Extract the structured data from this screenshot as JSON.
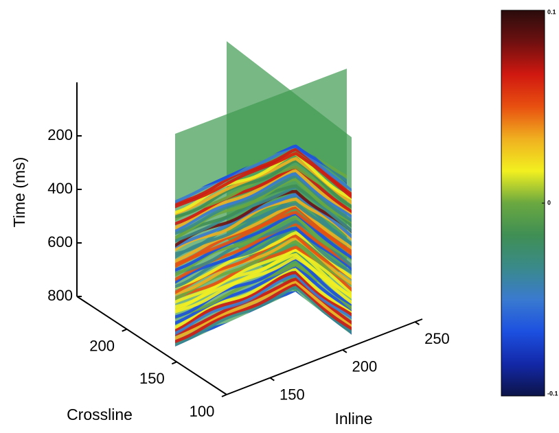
{
  "chart_data": {
    "type": "seismic-slices-3d",
    "xlabel": "Crossline",
    "ylabel": "Inline",
    "zlabel": "Time (ms)",
    "xlim": [
      100,
      250
    ],
    "xticks": [
      100,
      150,
      200
    ],
    "ylim": [
      120,
      255
    ],
    "yticks": [
      150,
      200,
      250
    ],
    "zlim": [
      0,
      800
    ],
    "zticks": [
      200,
      400,
      600,
      800
    ],
    "z_reversed": true,
    "clim": [
      -0.1,
      0.1
    ],
    "cticks": [
      -0.1,
      0,
      0.1
    ],
    "colormap": [
      "#0c1448",
      "#1328a8",
      "#1c50e0",
      "#3a7ad0",
      "#3a8a8a",
      "#3f8f55",
      "#6aa840",
      "#f2f020",
      "#f0b020",
      "#e85010",
      "#d01810",
      "#701010",
      "#2a0c0c"
    ]
  }
}
